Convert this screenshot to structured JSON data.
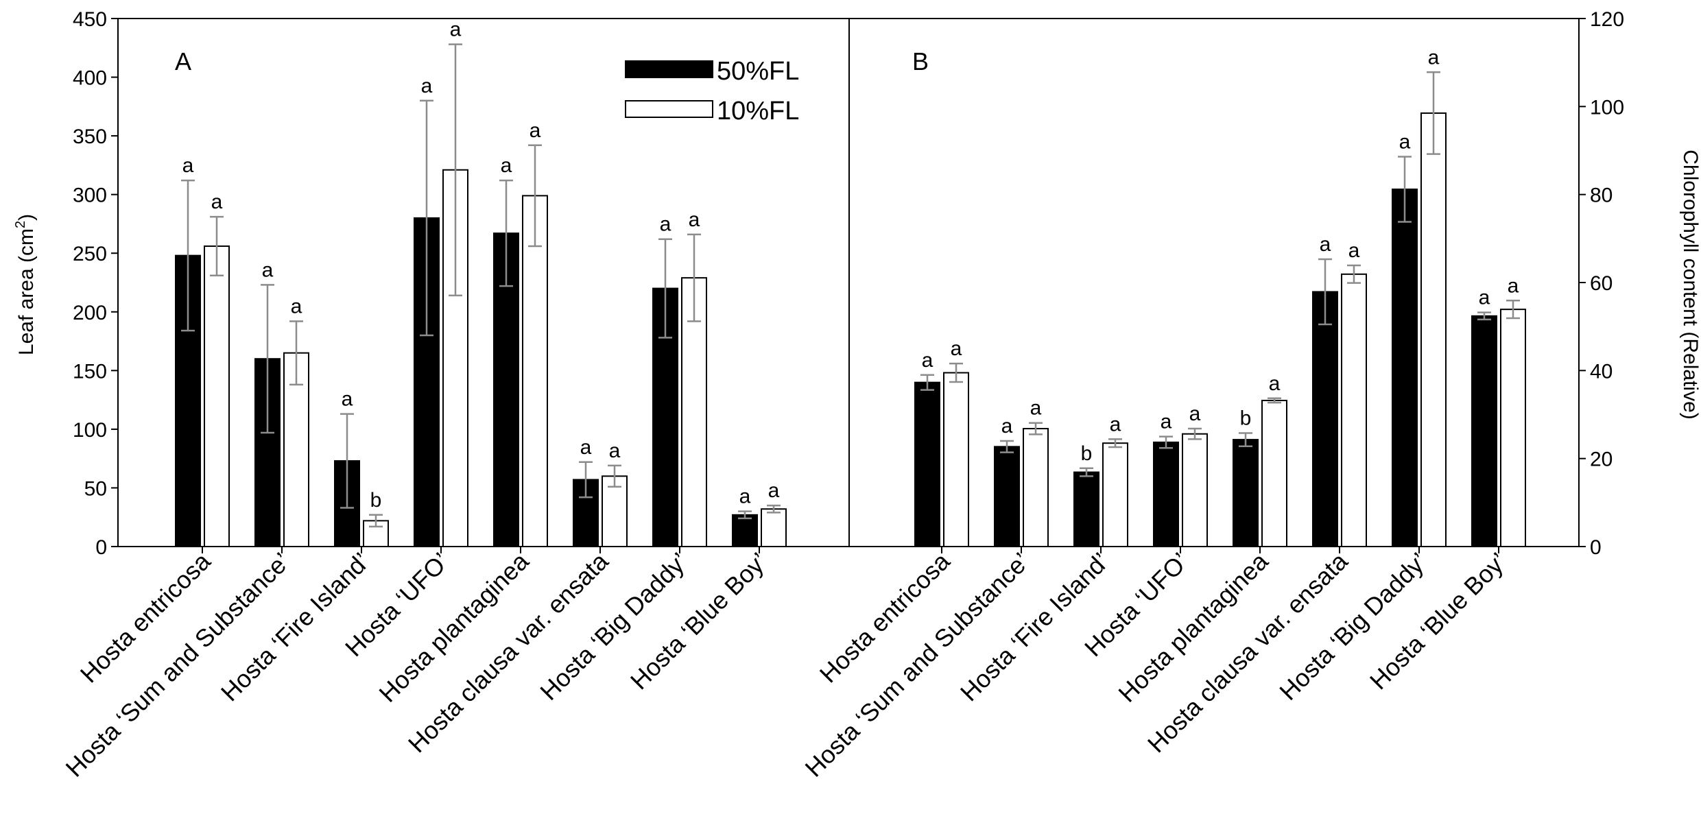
{
  "chart_data": {
    "type": "bar",
    "categories": [
      "Hosta entricosa",
      "Hosta ‘Sum and Substance’",
      "Hosta ‘Fire Island’",
      "Hosta ‘UFO’",
      "Hosta plantaginea",
      "Hosta clausa var. ensata",
      "Hosta ‘Big Daddy’",
      "Hosta ‘Blue Boy’"
    ],
    "legend": [
      {
        "name": "50%FL",
        "color": "#000000"
      },
      {
        "name": "10%FL",
        "color": "#ffffff"
      }
    ],
    "panels": [
      {
        "panel_label": "A",
        "ylabel_main": "Leaf area (cm",
        "ylabel_sup": "2",
        "ylabel_tail": ")",
        "ylim": [
          0,
          450
        ],
        "yticks": [
          0,
          50,
          100,
          150,
          200,
          250,
          300,
          350,
          400,
          450
        ],
        "series": [
          {
            "name": "50%FL",
            "values": [
              248,
              160,
              73,
              280,
              267,
              57,
              220,
              27
            ],
            "errors": [
              64,
              63,
              40,
              100,
              45,
              15,
              42,
              3
            ],
            "letters": [
              "a",
              "a",
              "a",
              "a",
              "a",
              "a",
              "a",
              "a"
            ]
          },
          {
            "name": "10%FL",
            "values": [
              256,
              165,
              22,
              321,
              299,
              60,
              229,
              32
            ],
            "errors": [
              25,
              27,
              5,
              107,
              43,
              9,
              37,
              3
            ],
            "letters": [
              "a",
              "a",
              "b",
              "a",
              "a",
              "a",
              "a",
              "a"
            ]
          }
        ]
      },
      {
        "panel_label": "B",
        "ylabel_main": "Chlorophyll content (Relative)",
        "ylim": [
          0,
          120
        ],
        "yticks": [
          0,
          20,
          40,
          60,
          80,
          100,
          120
        ],
        "series": [
          {
            "name": "50%FL",
            "values": [
              37.3,
              22.7,
              16.9,
              23.7,
              24.3,
              57.9,
              81.2,
              52.4
            ],
            "errors": [
              1.7,
              1.3,
              0.9,
              1.3,
              1.5,
              7.4,
              7.4,
              0.8
            ],
            "letters": [
              "a",
              "a",
              "b",
              "a",
              "b",
              "a",
              "a",
              "a"
            ]
          },
          {
            "name": "10%FL",
            "values": [
              39.5,
              26.8,
              23.5,
              25.6,
              33.2,
              61.9,
              98.5,
              53.9
            ],
            "errors": [
              2.1,
              1.3,
              0.9,
              1.2,
              0.5,
              2.0,
              9.3,
              2.0
            ],
            "letters": [
              "a",
              "a",
              "a",
              "a",
              "a",
              "a",
              "a",
              "a"
            ]
          }
        ]
      }
    ]
  }
}
